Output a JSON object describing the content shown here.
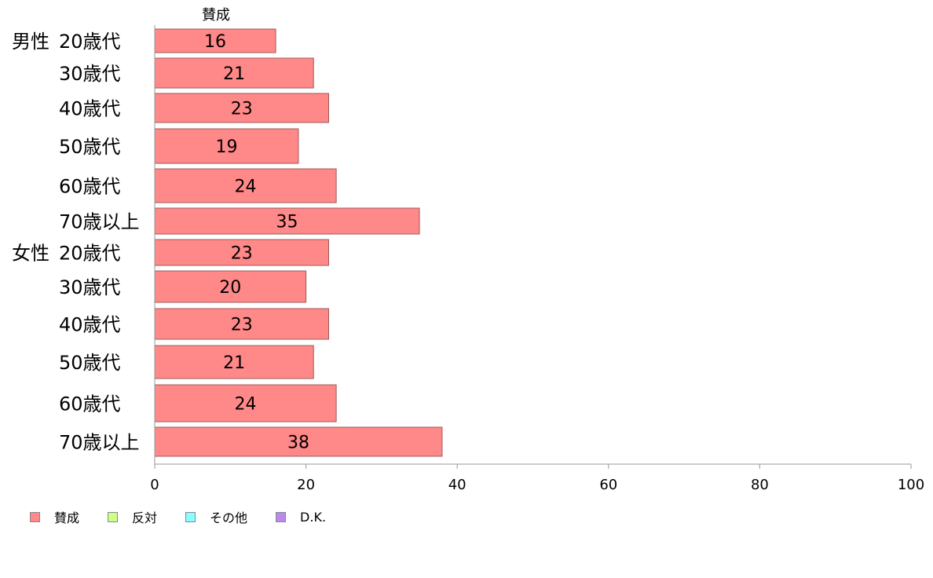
{
  "chart_data": {
    "type": "bar",
    "orientation": "horizontal",
    "top_label": "賛成",
    "groups": [
      {
        "label": "男性",
        "start": 0
      },
      {
        "label": "女性",
        "start": 6
      }
    ],
    "categories": [
      "20歳代",
      "30歳代",
      "40歳代",
      "50歳代",
      "60歳代",
      "70歳以上",
      "20歳代",
      "30歳代",
      "40歳代",
      "50歳代",
      "60歳代",
      "70歳以上"
    ],
    "series": [
      {
        "name": "賛成",
        "color": "#ff8888",
        "values": [
          16,
          21,
          23,
          19,
          24,
          35,
          23,
          20,
          23,
          21,
          24,
          38
        ]
      }
    ],
    "data_labels": [
      "16",
      "21",
      "23",
      "19",
      "24",
      "35",
      "23",
      "20",
      "23",
      "21",
      "24",
      "38"
    ],
    "xlim": [
      0,
      100
    ],
    "xticks": [
      "0",
      "20",
      "40",
      "60",
      "80",
      "100"
    ],
    "grid": false,
    "legend_position": "bottom-left"
  },
  "legend": {
    "items": [
      {
        "label": "賛成",
        "color": "#ff8888"
      },
      {
        "label": "反対",
        "color": "#ccff88"
      },
      {
        "label": "その他",
        "color": "#88ffff"
      },
      {
        "label": "D.K.",
        "color": "#bb88ee"
      }
    ]
  }
}
